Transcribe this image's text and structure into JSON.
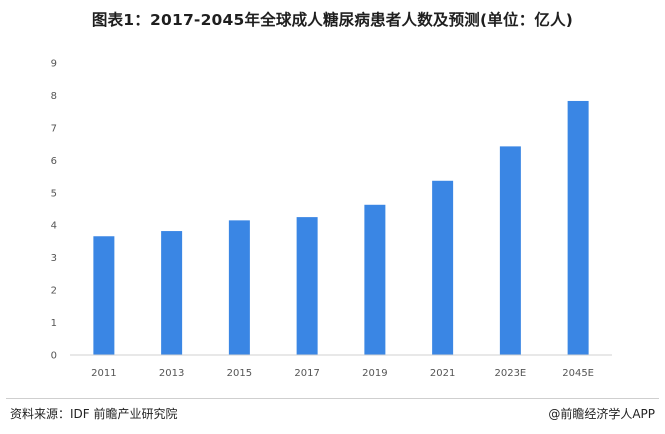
{
  "chart_data": {
    "type": "bar",
    "title": "图表1：2017-2045年全球成人糖尿病患者人数及预测(单位：亿人)",
    "categories": [
      "2011",
      "2013",
      "2015",
      "2017",
      "2019",
      "2021",
      "2023E",
      "2045E"
    ],
    "values": [
      3.66,
      3.82,
      4.15,
      4.25,
      4.63,
      5.37,
      6.43,
      7.83
    ],
    "ylim": [
      0,
      9
    ],
    "yticks": [
      "0",
      "1",
      "2",
      "3",
      "4",
      "5",
      "6",
      "7",
      "8",
      "9"
    ],
    "grid": false,
    "bar_color": "#3a86e4"
  },
  "footer": {
    "source": "资料来源：IDF 前瞻产业研究院",
    "credit": "@前瞻经济学人APP"
  }
}
